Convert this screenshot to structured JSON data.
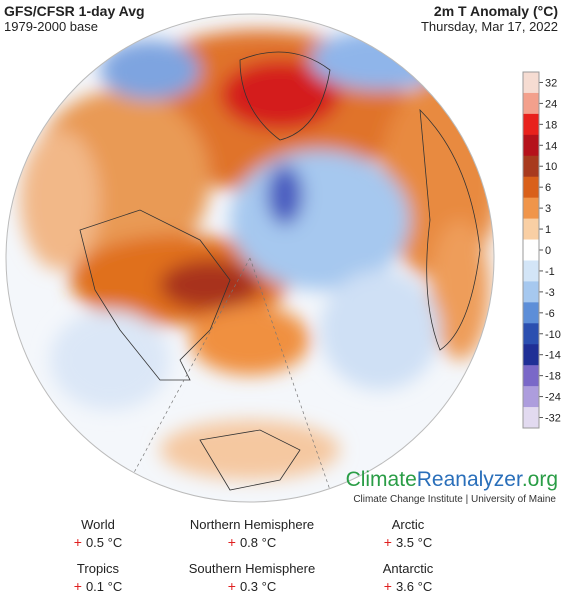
{
  "header": {
    "title": "GFS/CFSR 1-day Avg",
    "subtitle": "1979-2000 base",
    "variable": "2m T Anomaly (°C)",
    "date": "Thursday, Mar 17, 2022"
  },
  "legend": {
    "ticks": [
      32,
      24,
      18,
      14,
      10,
      6,
      3,
      1,
      0,
      -1,
      -3,
      -6,
      -10,
      -14,
      -18,
      -24,
      -32
    ],
    "colors": [
      "#f6dcd2",
      "#f3a08c",
      "#e8211c",
      "#b5121b",
      "#a83a1e",
      "#d9601a",
      "#f0954a",
      "#f9cfa4",
      "#ffffff",
      "#d3e5f7",
      "#a6c8ef",
      "#5d8ed8",
      "#2b4fb0",
      "#1f2f96",
      "#7a68c8",
      "#ad9ddd",
      "#e2daf0"
    ]
  },
  "branding": {
    "name_part1": "Climate",
    "name_part2": "Reanalyzer",
    "name_part3": ".org",
    "tagline": "Climate Change Institute | University of Maine"
  },
  "stats": [
    {
      "label": "World",
      "sign": "+",
      "value": "0.5 °C"
    },
    {
      "label": "Northern Hemisphere",
      "sign": "+",
      "value": "0.8 °C"
    },
    {
      "label": "Arctic",
      "sign": "+",
      "value": "3.5 °C"
    },
    {
      "label": "Tropics",
      "sign": "+",
      "value": "0.1 °C"
    },
    {
      "label": "Southern Hemisphere",
      "sign": "+",
      "value": "0.3 °C"
    },
    {
      "label": "Antarctic",
      "sign": "+",
      "value": "3.6 °C"
    }
  ]
}
